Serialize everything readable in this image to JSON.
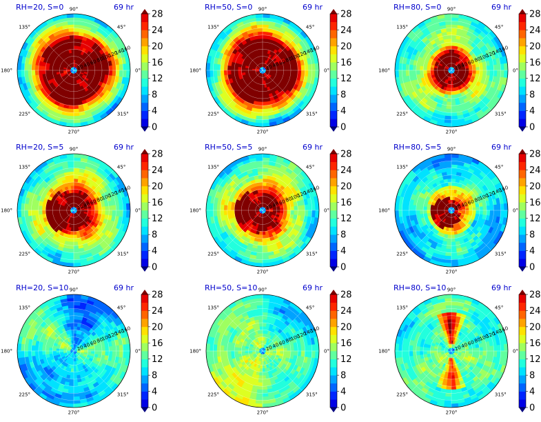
{
  "chart_data": {
    "type": "polar-contour-grid",
    "colorbar": {
      "ticks": [
        0,
        4,
        8,
        12,
        16,
        20,
        24,
        28
      ],
      "levels": [
        0,
        2,
        4,
        6,
        8,
        10,
        12,
        14,
        16,
        18,
        20,
        22,
        24,
        26,
        28
      ],
      "extend": "both",
      "colormap": "jet"
    },
    "angular_ticks": [
      "90°",
      "45°",
      "0°",
      "315°",
      "270°",
      "225°",
      "180°",
      "135°"
    ],
    "radial_ticks": [
      "20",
      "40",
      "60",
      "80",
      "100",
      "120",
      "140",
      "160"
    ],
    "panels": [
      {
        "label": "RH=20, S=0",
        "time": "69 hr",
        "regime": "strong"
      },
      {
        "label": "RH=50, S=0",
        "time": "69 hr",
        "regime": "strong"
      },
      {
        "label": "RH=80, S=0",
        "time": "69 hr",
        "regime": "compact"
      },
      {
        "label": "RH=20, S=5",
        "time": "69 hr",
        "regime": "medium"
      },
      {
        "label": "RH=50, S=5",
        "time": "69 hr",
        "regime": "medium"
      },
      {
        "label": "RH=80, S=5",
        "time": "69 hr",
        "regime": "medium-small"
      },
      {
        "label": "RH=20, S=10",
        "time": "69 hr",
        "regime": "weak"
      },
      {
        "label": "RH=50, S=10",
        "time": "69 hr",
        "regime": "weak-mid"
      },
      {
        "label": "RH=80, S=10",
        "time": "69 hr",
        "regime": "band"
      }
    ]
  }
}
